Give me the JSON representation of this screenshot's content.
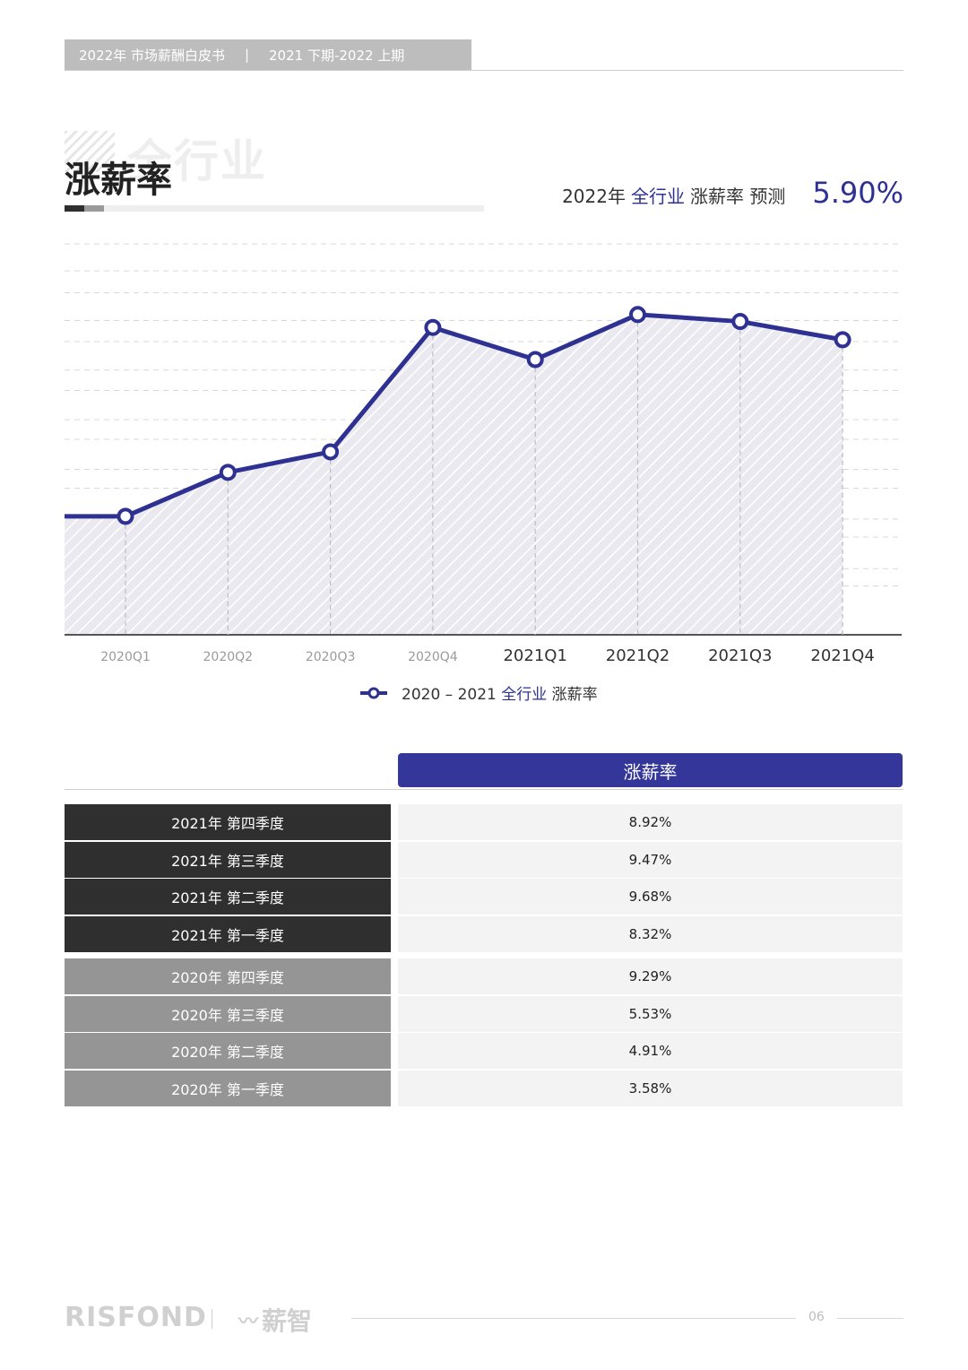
{
  "header": {
    "left": "2022年 市场薪酬白皮书",
    "separator": "|",
    "right": "2021 下期-2022 上期"
  },
  "title": {
    "main": "涨薪率",
    "background": "全行业"
  },
  "forecast": {
    "prefix": "2022年",
    "highlight": "全行业",
    "suffix": "涨薪率 预测",
    "value": "5.90%"
  },
  "chart_data": {
    "type": "area",
    "categories": [
      "2020Q1",
      "2020Q2",
      "2020Q3",
      "2020Q4",
      "2021Q1",
      "2021Q2",
      "2021Q3",
      "2021Q4"
    ],
    "series": [
      {
        "name": "2020 – 2021 全行业 涨薪率",
        "values": [
          3.58,
          4.91,
          5.53,
          9.29,
          8.32,
          9.68,
          9.47,
          8.92
        ]
      }
    ],
    "legend_parts": [
      "2020 – 2021",
      "全行业",
      "涨薪率"
    ],
    "ylim": [
      0,
      12
    ],
    "grid": true,
    "legend": "bottom-center",
    "line_color": "#2e3192"
  },
  "table": {
    "header": "涨薪率",
    "rows": [
      {
        "label": "2021年 第四季度",
        "value": "8.92%",
        "group": "2021"
      },
      {
        "label": "2021年 第三季度",
        "value": "9.47%",
        "group": "2021"
      },
      {
        "label": "2021年 第二季度",
        "value": "9.68%",
        "group": "2021"
      },
      {
        "label": "2021年 第一季度",
        "value": "8.32%",
        "group": "2021"
      },
      {
        "label": "2020年 第四季度",
        "value": "9.29%",
        "group": "2020"
      },
      {
        "label": "2020年 第三季度",
        "value": "5.53%",
        "group": "2020"
      },
      {
        "label": "2020年 第二季度",
        "value": "4.91%",
        "group": "2020"
      },
      {
        "label": "2020年 第一季度",
        "value": "3.58%",
        "group": "2020"
      }
    ]
  },
  "footer": {
    "logo": "RISFOND",
    "brand": "薪智",
    "page": "06"
  }
}
